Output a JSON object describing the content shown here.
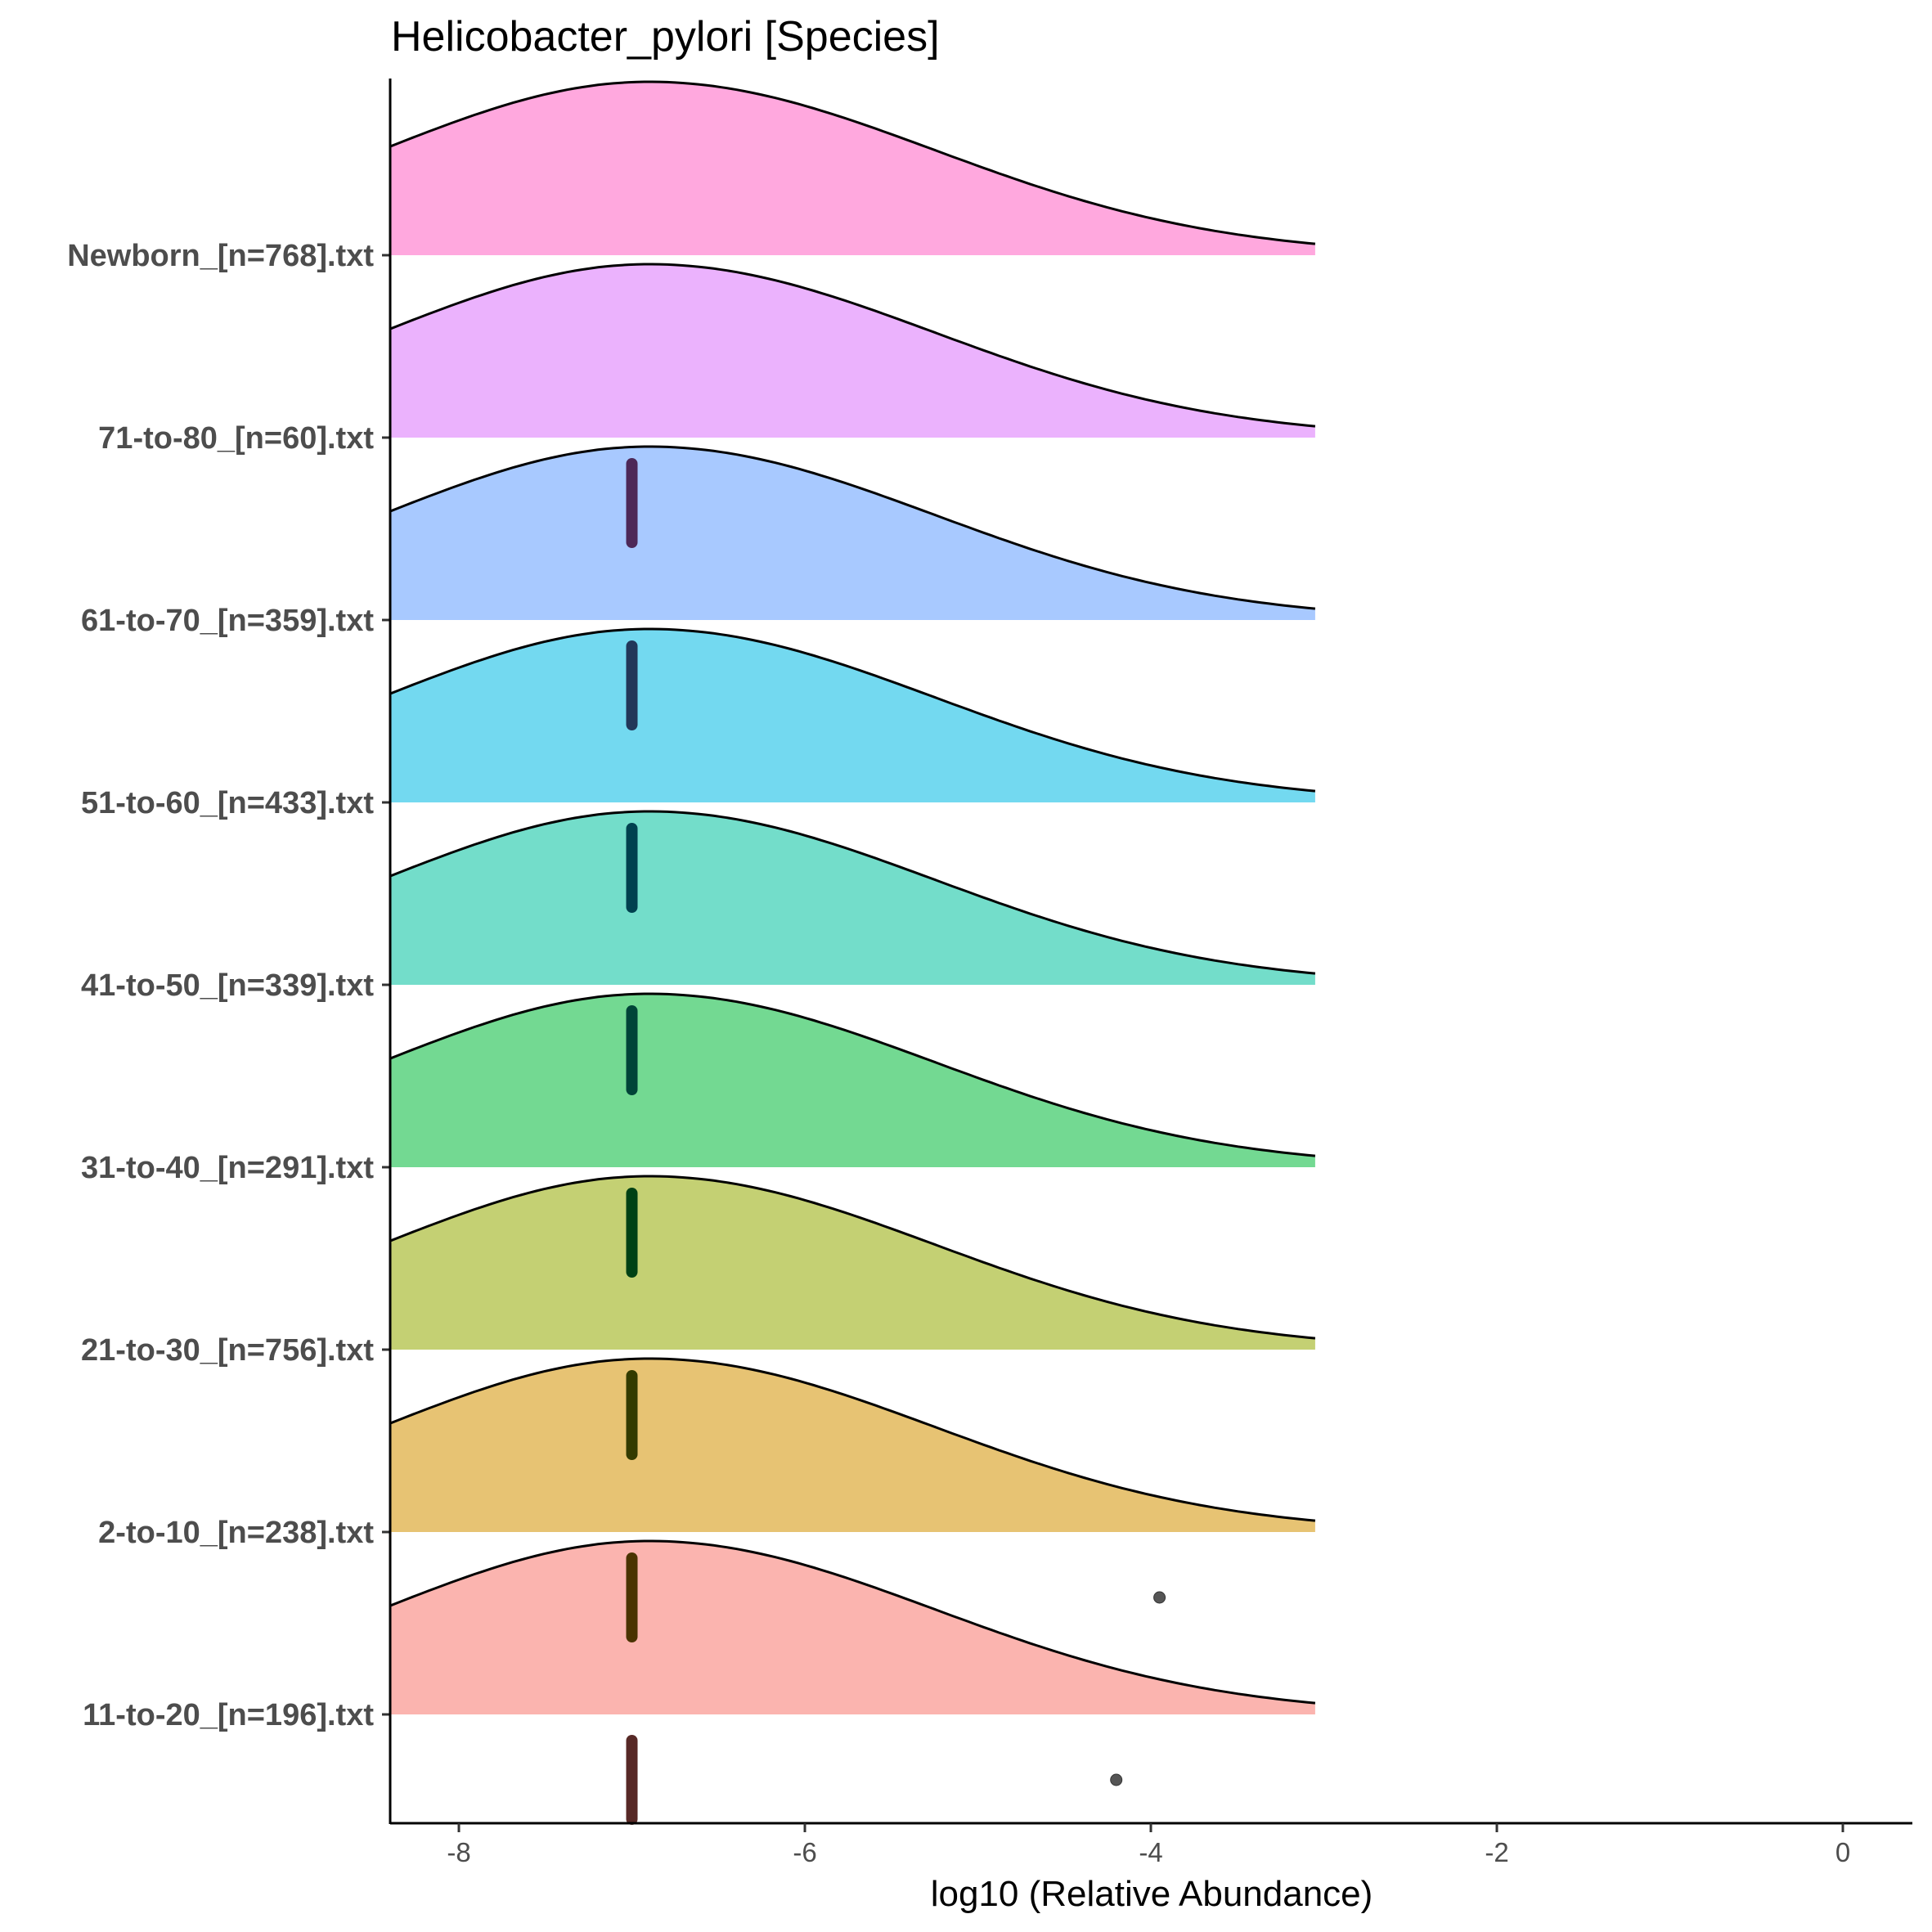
{
  "chart_data": {
    "type": "ridgeline",
    "title": "Helicobacter_pylori [Species]",
    "xlabel": "log10 (Relative Abundance)",
    "ylabel": "",
    "xlim": [
      -8.4,
      0.4
    ],
    "xticks": [
      -8,
      -6,
      -4,
      -2,
      0
    ],
    "density_range": [
      -8.4,
      -3.05
    ],
    "mode": -6.9,
    "groups": [
      {
        "label": "11-to-20_[n=196].txt",
        "color": "#F8766D",
        "median": -7.0,
        "outliers": [
          -4.2
        ]
      },
      {
        "label": "2-to-10_[n=238].txt",
        "color": "#D39200",
        "median": -7.0,
        "outliers": [
          -3.95
        ]
      },
      {
        "label": "21-to-30_[n=756].txt",
        "color": "#93AA00",
        "median": -7.0,
        "outliers": []
      },
      {
        "label": "31-to-40_[n=291].txt",
        "color": "#00BA38",
        "median": -7.0,
        "outliers": []
      },
      {
        "label": "41-to-50_[n=339].txt",
        "color": "#00C19F",
        "median": -7.0,
        "outliers": []
      },
      {
        "label": "51-to-60_[n=433].txt",
        "color": "#00B9E3",
        "median": -7.0,
        "outliers": []
      },
      {
        "label": "61-to-70_[n=359].txt",
        "color": "#619CFF",
        "median": -7.0,
        "outliers": []
      },
      {
        "label": "71-to-80_[n=60].txt",
        "color": "#DB72FB",
        "median": -7.0,
        "outliers": []
      },
      {
        "label": "Newborn_[n=768].txt",
        "color": "#FF61C3",
        "median": null,
        "outliers": []
      }
    ]
  }
}
